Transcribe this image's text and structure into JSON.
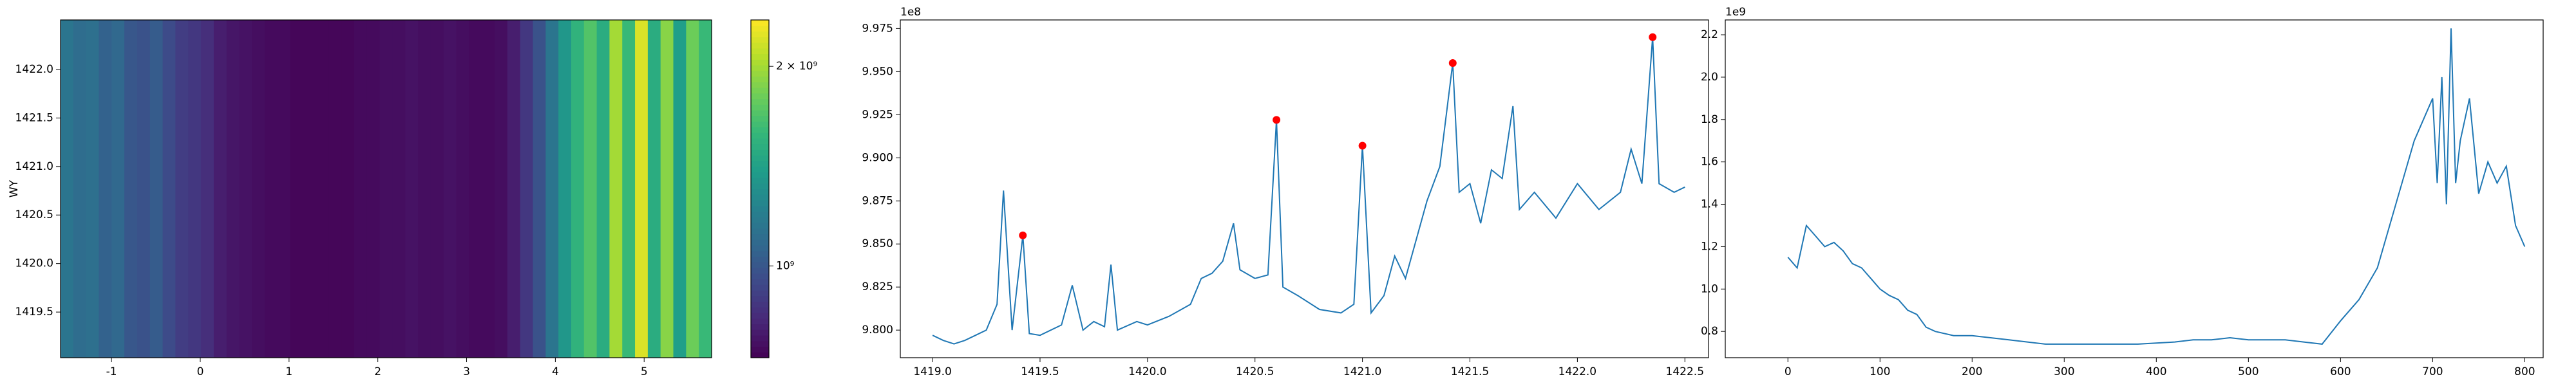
{
  "chart_data": [
    {
      "type": "heatmap",
      "ylabel": "WY",
      "xlim": [
        -1.574,
        5.76
      ],
      "ylim": [
        1419.03,
        1422.51
      ],
      "xticks": [
        -1,
        0,
        1,
        2,
        3,
        4,
        5
      ],
      "yticks": [
        1419.5,
        {
          "value": 1420.0,
          "label": "1420.0"
        },
        1420.5,
        {
          "value": 1421.0,
          "label": "1421.0"
        },
        1421.5,
        {
          "value": 1422.0,
          "label": "1422.0"
        }
      ],
      "colormap": "viridis",
      "color_scale": "log",
      "clim": [
        727000000.0,
        2350000000.0
      ],
      "colorbar_ticks": [
        {
          "value": 1000000000.0,
          "label": "10⁹"
        },
        {
          "value": 2000000000.0,
          "label": "2 × 10⁹"
        }
      ],
      "values": [
        1150000000.0,
        1100000000.0,
        1120000000.0,
        1050000000.0,
        1080000000.0,
        1000000000.0,
        980000000.0,
        1020000000.0,
        950000000.0,
        900000000.0,
        880000000.0,
        850000000.0,
        800000000.0,
        780000000.0,
        770000000.0,
        760000000.0,
        750000000.0,
        750000000.0,
        740000000.0,
        740000000.0,
        740000000.0,
        740000000.0,
        740000000.0,
        750000000.0,
        750000000.0,
        760000000.0,
        760000000.0,
        770000000.0,
        760000000.0,
        760000000.0,
        770000000.0,
        760000000.0,
        750000000.0,
        750000000.0,
        760000000.0,
        800000000.0,
        880000000.0,
        980000000.0,
        1150000000.0,
        1350000000.0,
        1550000000.0,
        1700000000.0,
        1500000000.0,
        2000000000.0,
        1600000000.0,
        2200000000.0,
        1500000000.0,
        1900000000.0,
        1400000000.0,
        1800000000.0,
        1600000000.0
      ]
    },
    {
      "type": "line",
      "offset_label": "1e8",
      "xlim": [
        1418.85,
        1422.61
      ],
      "ylim": [
        9.784,
        9.98
      ],
      "xticks": [
        {
          "value": 1419.0,
          "label": "1419.0"
        },
        1419.5,
        {
          "value": 1420.0,
          "label": "1420.0"
        },
        1420.5,
        {
          "value": 1421.0,
          "label": "1421.0"
        },
        1421.5,
        {
          "value": 1422.0,
          "label": "1422.0"
        },
        1422.5
      ],
      "yticks": [
        {
          "value": 9.8,
          "label": "9.800"
        },
        {
          "value": 9.825,
          "label": "9.825"
        },
        {
          "value": 9.85,
          "label": "9.850"
        },
        {
          "value": 9.875,
          "label": "9.875"
        },
        {
          "value": 9.9,
          "label": "9.900"
        },
        {
          "value": 9.925,
          "label": "9.925"
        },
        {
          "value": 9.95,
          "label": "9.950"
        },
        {
          "value": 9.975,
          "label": "9.975"
        }
      ],
      "series": [
        {
          "color": "#1f77b4",
          "x": [
            1419.0,
            1419.05,
            1419.1,
            1419.15,
            1419.2,
            1419.25,
            1419.3,
            1419.33,
            1419.37,
            1419.42,
            1419.45,
            1419.5,
            1419.6,
            1419.65,
            1419.7,
            1419.75,
            1419.8,
            1419.83,
            1419.86,
            1419.95,
            1420.0,
            1420.1,
            1420.2,
            1420.25,
            1420.3,
            1420.35,
            1420.4,
            1420.43,
            1420.5,
            1420.56,
            1420.6,
            1420.63,
            1420.7,
            1420.8,
            1420.9,
            1420.96,
            1421.0,
            1421.04,
            1421.1,
            1421.15,
            1421.2,
            1421.3,
            1421.36,
            1421.42,
            1421.45,
            1421.5,
            1421.55,
            1421.6,
            1421.65,
            1421.7,
            1421.73,
            1421.8,
            1421.9,
            1422.0,
            1422.1,
            1422.2,
            1422.25,
            1422.3,
            1422.35,
            1422.38,
            1422.45,
            1422.5
          ],
          "values": [
            9.797,
            9.794,
            9.792,
            9.794,
            9.797,
            9.8,
            9.815,
            9.881,
            9.8,
            9.855,
            9.798,
            9.797,
            9.803,
            9.826,
            9.8,
            9.805,
            9.802,
            9.838,
            9.8,
            9.805,
            9.803,
            9.808,
            9.815,
            9.83,
            9.833,
            9.84,
            9.862,
            9.835,
            9.83,
            9.832,
            9.922,
            9.825,
            9.82,
            9.812,
            9.81,
            9.815,
            9.907,
            9.81,
            9.82,
            9.843,
            9.83,
            9.875,
            9.895,
            9.955,
            9.88,
            9.885,
            9.862,
            9.893,
            9.888,
            9.93,
            9.87,
            9.88,
            9.865,
            9.885,
            9.87,
            9.88,
            9.905,
            9.885,
            9.97,
            9.885,
            9.88,
            9.883
          ]
        },
        {
          "color": "#ff0000",
          "marker": "dot",
          "x": [
            1419.42,
            1420.6,
            1421.0,
            1421.42,
            1422.35
          ],
          "values": [
            9.855,
            9.922,
            9.907,
            9.955,
            9.97
          ]
        }
      ]
    },
    {
      "type": "line",
      "offset_label": "1e9",
      "xlim": [
        -68,
        820
      ],
      "ylim": [
        0.676,
        2.27
      ],
      "xticks": [
        0,
        100,
        200,
        300,
        400,
        500,
        600,
        700,
        800
      ],
      "yticks": [
        0.8,
        {
          "value": 1.0,
          "label": "1.0"
        },
        1.2,
        1.4,
        1.6,
        1.8,
        {
          "value": 2.0,
          "label": "2.0"
        },
        2.2
      ],
      "series": [
        {
          "color": "#1f77b4",
          "x": [
            0,
            10,
            20,
            30,
            40,
            50,
            60,
            70,
            80,
            90,
            100,
            110,
            120,
            130,
            140,
            150,
            160,
            180,
            200,
            220,
            240,
            260,
            280,
            300,
            320,
            340,
            360,
            380,
            400,
            420,
            440,
            460,
            480,
            500,
            520,
            540,
            560,
            580,
            600,
            620,
            640,
            660,
            670,
            680,
            690,
            700,
            705,
            710,
            715,
            720,
            725,
            730,
            740,
            750,
            760,
            770,
            780,
            790,
            800
          ],
          "values": [
            1.15,
            1.1,
            1.3,
            1.25,
            1.2,
            1.22,
            1.18,
            1.12,
            1.1,
            1.05,
            1.0,
            0.97,
            0.95,
            0.9,
            0.88,
            0.82,
            0.8,
            0.78,
            0.78,
            0.77,
            0.76,
            0.75,
            0.74,
            0.74,
            0.74,
            0.74,
            0.74,
            0.74,
            0.745,
            0.75,
            0.76,
            0.76,
            0.77,
            0.76,
            0.76,
            0.76,
            0.75,
            0.74,
            0.85,
            0.95,
            1.1,
            1.4,
            1.55,
            1.7,
            1.8,
            1.9,
            1.5,
            2.0,
            1.4,
            2.23,
            1.5,
            1.7,
            1.9,
            1.45,
            1.6,
            1.5,
            1.58,
            1.3,
            1.2
          ]
        }
      ]
    }
  ]
}
